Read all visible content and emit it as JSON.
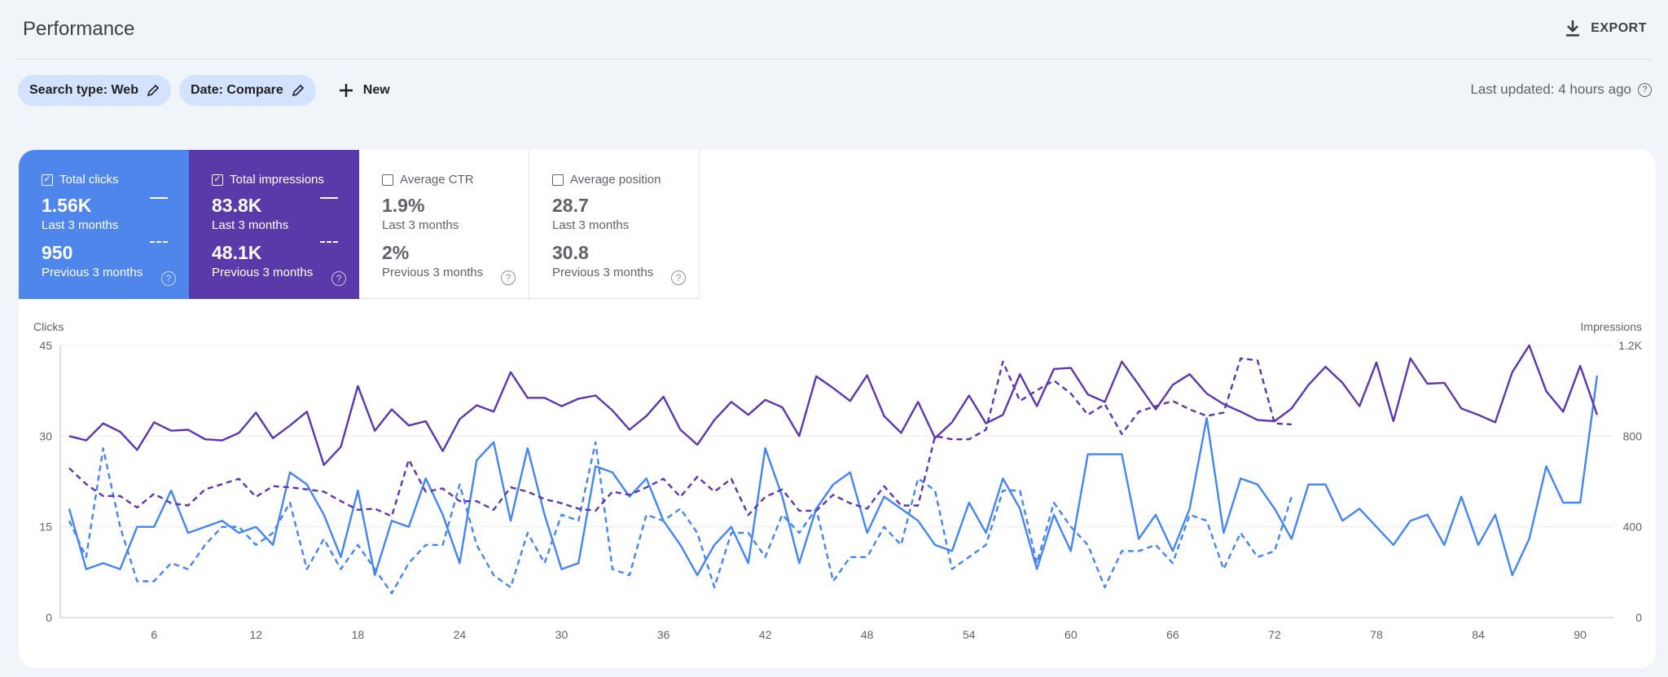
{
  "header": {
    "title": "Performance",
    "export_label": "EXPORT",
    "export_icon": "download-icon"
  },
  "filters": {
    "search_type": "Search type: Web",
    "date": "Date: Compare",
    "new_label": "New",
    "edit_icon": "pencil-icon",
    "add_icon": "plus-icon"
  },
  "status": {
    "last_updated": "Last updated: 4 hours ago"
  },
  "metrics": [
    {
      "label": "Total clicks",
      "checked": true,
      "value": "1.56K",
      "period": "Last 3 months",
      "prev_value": "950",
      "prev_period": "Previous 3 months",
      "color": "#4f86ec"
    },
    {
      "label": "Total impressions",
      "checked": true,
      "value": "83.8K",
      "period": "Last 3 months",
      "prev_value": "48.1K",
      "prev_period": "Previous 3 months",
      "color": "#5a3aa9"
    },
    {
      "label": "Average CTR",
      "checked": false,
      "value": "1.9%",
      "period": "Last 3 months",
      "prev_value": "2%",
      "prev_period": "Previous 3 months"
    },
    {
      "label": "Average position",
      "checked": false,
      "value": "28.7",
      "period": "Last 3 months",
      "prev_value": "30.8",
      "prev_period": "Previous 3 months"
    }
  ],
  "chart_data": {
    "type": "line",
    "left_axis": {
      "label": "Clicks",
      "ticks": [
        "0",
        "15",
        "30",
        "45"
      ],
      "range": [
        0,
        45
      ]
    },
    "right_axis": {
      "label": "Impressions",
      "ticks": [
        "0",
        "400",
        "800",
        "1.2K"
      ],
      "range": [
        0,
        1200
      ]
    },
    "x_ticks": [
      "6",
      "12",
      "18",
      "24",
      "30",
      "36",
      "42",
      "48",
      "54",
      "60",
      "66",
      "72",
      "78",
      "84",
      "90"
    ],
    "x_range": [
      1,
      91
    ],
    "grid": true,
    "series": [
      {
        "metric": "clicks",
        "period": "current",
        "axis": "left",
        "style": "solid",
        "color": "#4285f4",
        "values": [
          18,
          8,
          9,
          8,
          15,
          15,
          21,
          14,
          15,
          16,
          14,
          15,
          12,
          24,
          22,
          17,
          10,
          21,
          7,
          16,
          15,
          23,
          17,
          9,
          26,
          29,
          16,
          28,
          17,
          8,
          9,
          25,
          24,
          20,
          23,
          16,
          12,
          7,
          12,
          15,
          9,
          28,
          20,
          9,
          18,
          22,
          24,
          14,
          20,
          18,
          16,
          12,
          11,
          19,
          14,
          23,
          18,
          8,
          17,
          11,
          27,
          27,
          27,
          13,
          17,
          11,
          18,
          33,
          14,
          23,
          22,
          18,
          13,
          22,
          22,
          16,
          18,
          15,
          12,
          16,
          17,
          12,
          20,
          12,
          17,
          7,
          13,
          25,
          19,
          19,
          40
        ]
      },
      {
        "metric": "clicks",
        "period": "previous",
        "axis": "left",
        "style": "dashed",
        "color": "#4285f4",
        "values": [
          16,
          10,
          28,
          15,
          6,
          6,
          9,
          8,
          12,
          15,
          15,
          12,
          14,
          19,
          8,
          13,
          8,
          12,
          8,
          4,
          9,
          12,
          12,
          22,
          12,
          7,
          5,
          14,
          9,
          17,
          16,
          29,
          8,
          7,
          17,
          16,
          18,
          14,
          5,
          14,
          14,
          10,
          17,
          14,
          18,
          6,
          10,
          10,
          15,
          12,
          23,
          21,
          8,
          10,
          12,
          21,
          21,
          9,
          19,
          15,
          12,
          5,
          11,
          11,
          12,
          9,
          17,
          16,
          8,
          14,
          10,
          11,
          20
        ]
      },
      {
        "metric": "impressions",
        "period": "current",
        "axis": "right",
        "style": "solid",
        "color": "#5e35b1",
        "values": [
          800,
          781,
          856,
          819,
          739,
          861,
          824,
          828,
          786,
          781,
          814,
          904,
          791,
          847,
          908,
          673,
          753,
          1021,
          824,
          918,
          847,
          866,
          734,
          875,
          936,
          908,
          1082,
          969,
          969,
          932,
          965,
          979,
          913,
          828,
          889,
          974,
          828,
          762,
          871,
          951,
          894,
          960,
          927,
          800,
          1064,
          1012,
          955,
          1068,
          889,
          814,
          951,
          791,
          861,
          979,
          856,
          894,
          1073,
          932,
          1096,
          1101,
          984,
          951,
          1129,
          1026,
          918,
          1026,
          1073,
          988,
          941,
          908,
          871,
          866,
          922,
          1026,
          1106,
          1035,
          932,
          1125,
          866,
          1143,
          1031,
          1035,
          922,
          894,
          861,
          1082,
          1200,
          998,
          908,
          1110,
          894
        ]
      },
      {
        "metric": "impressions",
        "period": "previous",
        "axis": "right",
        "style": "dashed",
        "color": "#5e35b1",
        "values": [
          659,
          588,
          536,
          536,
          485,
          546,
          504,
          494,
          565,
          588,
          612,
          532,
          579,
          574,
          565,
          555,
          513,
          475,
          480,
          447,
          696,
          555,
          569,
          513,
          513,
          475,
          574,
          555,
          522,
          504,
          480,
          471,
          555,
          541,
          574,
          612,
          532,
          621,
          555,
          612,
          452,
          532,
          565,
          471,
          471,
          541,
          504,
          480,
          579,
          494,
          494,
          800,
          786,
          786,
          828,
          1129,
          955,
          1002,
          1045,
          988,
          894,
          941,
          809,
          908,
          932,
          955,
          918,
          889,
          904,
          1143,
          1134,
          856,
          852
        ]
      }
    ]
  }
}
